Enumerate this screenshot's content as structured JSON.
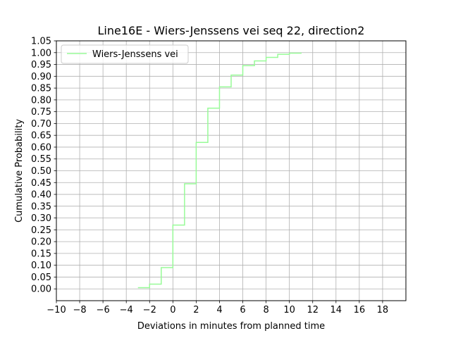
{
  "chart_data": {
    "type": "line",
    "drawstyle": "steps-post",
    "title": "Line16E - Wiers-Jenssens vei seq 22, direction2",
    "xlabel": "Deviations in minutes from planned time",
    "ylabel": "Cumulative Probability",
    "xlim": [
      -10,
      20
    ],
    "ylim": [
      -0.05,
      1.05
    ],
    "xticks": [
      -10,
      -8,
      -6,
      -4,
      -2,
      0,
      2,
      4,
      6,
      8,
      10,
      12,
      14,
      16,
      18
    ],
    "xtick_labels": [
      "−10",
      "−8",
      "−6",
      "−4",
      "−2",
      "0",
      "2",
      "4",
      "6",
      "8",
      "10",
      "12",
      "14",
      "16",
      "18"
    ],
    "yticks": [
      0,
      0.05,
      0.1,
      0.15,
      0.2,
      0.25,
      0.3,
      0.35,
      0.4,
      0.45,
      0.5,
      0.55,
      0.6,
      0.65,
      0.7,
      0.75,
      0.8,
      0.85,
      0.9,
      0.95,
      1.0,
      1.05
    ],
    "ytick_labels": [
      "0.00",
      "0.05",
      "0.10",
      "0.15",
      "0.20",
      "0.25",
      "0.30",
      "0.35",
      "0.40",
      "0.45",
      "0.50",
      "0.55",
      "0.60",
      "0.65",
      "0.70",
      "0.75",
      "0.80",
      "0.85",
      "0.90",
      "0.95",
      "1.00",
      "1.05"
    ],
    "grid": true,
    "legend_position": "top-left",
    "series": [
      {
        "name": "Wiers-Jenssens vei",
        "color": "#98fb98",
        "x": [
          -3,
          -2,
          -1,
          0,
          1,
          2,
          3,
          4,
          5,
          6,
          7,
          8,
          9,
          10,
          11
        ],
        "y": [
          0.005,
          0.02,
          0.09,
          0.27,
          0.445,
          0.62,
          0.765,
          0.855,
          0.905,
          0.945,
          0.965,
          0.98,
          0.993,
          0.998,
          1.0
        ]
      }
    ]
  }
}
